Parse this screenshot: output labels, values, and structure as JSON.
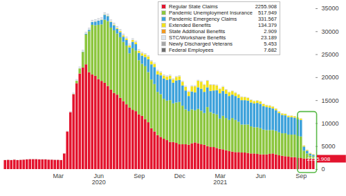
{
  "chart_data": {
    "type": "bar",
    "stacked": true,
    "grid": false,
    "legend": "top-right",
    "categories": [
      null,
      null,
      null,
      null,
      null,
      null,
      null,
      null,
      null,
      null,
      null,
      null,
      null,
      null,
      null,
      null,
      null,
      "Mar",
      null,
      null,
      null,
      null,
      null,
      null,
      null,
      null,
      null,
      null,
      null,
      null,
      "Jun\n2020",
      null,
      null,
      null,
      null,
      null,
      null,
      null,
      null,
      null,
      null,
      null,
      null,
      "Sep",
      null,
      null,
      null,
      null,
      null,
      null,
      null,
      null,
      null,
      null,
      null,
      null,
      "Dec",
      null,
      null,
      null,
      null,
      null,
      null,
      null,
      null,
      null,
      null,
      null,
      null,
      "Mar\n2021",
      null,
      null,
      null,
      null,
      null,
      null,
      null,
      null,
      null,
      null,
      null,
      null,
      "Jun",
      null,
      null,
      null,
      null,
      null,
      null,
      null,
      null,
      null,
      null,
      null,
      null,
      "Sep",
      null,
      null,
      null,
      null
    ],
    "ylim": [
      0,
      35000
    ],
    "yticks": [
      0,
      5000,
      10000,
      15000,
      20000,
      25000,
      30000,
      35000
    ],
    "series": [
      {
        "name": "Regular State Claims",
        "color": "#e3142e",
        "values": [
          1950,
          2000,
          1950,
          2050,
          1950,
          2000,
          2050,
          2100,
          2150,
          2150,
          2150,
          2100,
          2100,
          2100,
          2050,
          2050,
          2000,
          2000,
          1950,
          3400,
          8200,
          12400,
          16300,
          18700,
          20800,
          22100,
          22800,
          21100,
          20600,
          20300,
          19600,
          19200,
          18800,
          18100,
          17300,
          16600,
          16200,
          15500,
          14800,
          14100,
          13400,
          12900,
          12600,
          11900,
          11600,
          10900,
          10200,
          8900,
          8200,
          7400,
          7000,
          6600,
          6300,
          5900,
          5900,
          5700,
          5400,
          5400,
          5400,
          5300,
          5600,
          5800,
          5600,
          5400,
          5300,
          5000,
          4800,
          4800,
          4600,
          4400,
          4300,
          4100,
          3900,
          3800,
          3700,
          3700,
          3600,
          3600,
          3500,
          3400,
          3400,
          3300,
          3200,
          3200,
          3200,
          3300,
          3400,
          3200,
          3000,
          2900,
          2800,
          2700,
          2600,
          2600,
          2500,
          2400,
          2300,
          2300,
          2250,
          2255.908
        ]
      },
      {
        "name": "Pandemic Unemployment Insurance",
        "color": "#8cc63e",
        "values": [
          0,
          0,
          0,
          0,
          0,
          0,
          0,
          0,
          0,
          0,
          0,
          0,
          0,
          0,
          0,
          0,
          0,
          0,
          0,
          0,
          0,
          0,
          50,
          500,
          1100,
          3400,
          6500,
          8900,
          10800,
          11000,
          11800,
          12300,
          13700,
          14100,
          13500,
          13600,
          13300,
          13200,
          12900,
          12800,
          11800,
          13400,
          13200,
          11800,
          11300,
          11500,
          10900,
          10600,
          10300,
          9400,
          9300,
          8700,
          8600,
          9100,
          8400,
          8800,
          9200,
          8400,
          7600,
          7300,
          7400,
          7000,
          7500,
          7300,
          6900,
          8500,
          7600,
          7300,
          7300,
          6600,
          7300,
          7000,
          6800,
          7300,
          7000,
          6600,
          6100,
          6100,
          6200,
          5900,
          5700,
          5800,
          5700,
          5400,
          5300,
          5200,
          5100,
          5100,
          5000,
          4900,
          5000,
          4800,
          4900,
          4900,
          4700,
          4700,
          1700,
          1100,
          700,
          517.949
        ]
      },
      {
        "name": "Pandemic Emergency Claims",
        "color": "#3ea2db",
        "values": [
          0,
          0,
          0,
          0,
          0,
          0,
          0,
          0,
          0,
          0,
          0,
          0,
          0,
          0,
          0,
          0,
          0,
          0,
          0,
          0,
          0,
          0,
          0,
          0,
          0,
          50,
          170,
          300,
          600,
          800,
          900,
          1000,
          1100,
          1100,
          1200,
          1100,
          1000,
          1100,
          1100,
          1200,
          1300,
          1400,
          1400,
          1600,
          1800,
          2000,
          2800,
          3300,
          3700,
          3800,
          4100,
          4400,
          4500,
          4600,
          4500,
          4800,
          4800,
          4400,
          4100,
          3300,
          3900,
          3900,
          4700,
          4800,
          4600,
          4300,
          4600,
          5000,
          5300,
          5500,
          5400,
          5300,
          5200,
          5100,
          5200,
          5200,
          5300,
          5300,
          5200,
          5200,
          5200,
          5300,
          5300,
          5100,
          5000,
          4900,
          4700,
          4500,
          4200,
          4000,
          3900,
          3800,
          3800,
          3700,
          3700,
          3600,
          900,
          600,
          400,
          331.567
        ]
      },
      {
        "name": "Extended Benefits",
        "color": "#f2e21c",
        "values": [
          2,
          2,
          2,
          2,
          2,
          2,
          2,
          2,
          2,
          2,
          2,
          2,
          2,
          2,
          2,
          2,
          2,
          2,
          2,
          2,
          3,
          5,
          8,
          10,
          12,
          15,
          18,
          20,
          25,
          30,
          40,
          50,
          70,
          90,
          100,
          150,
          200,
          250,
          300,
          350,
          400,
          400,
          400,
          450,
          500,
          550,
          600,
          650,
          700,
          700,
          600,
          650,
          700,
          700,
          700,
          750,
          800,
          800,
          800,
          900,
          1100,
          1300,
          1400,
          1500,
          1500,
          1400,
          1300,
          1200,
          1000,
          950,
          900,
          850,
          800,
          750,
          700,
          700,
          700,
          650,
          600,
          550,
          500,
          500,
          500,
          450,
          400,
          400,
          400,
          350,
          300,
          300,
          300,
          300,
          300,
          300,
          300,
          280,
          200,
          170,
          150,
          134.379
        ]
      },
      {
        "name": "State Additional Benefits",
        "color": "#f39a1f",
        "values": [
          1,
          1,
          1,
          1,
          1,
          1,
          1,
          1,
          1,
          1,
          1,
          1,
          1,
          1,
          1,
          1,
          1,
          1,
          1,
          1,
          1,
          1,
          2,
          2,
          3,
          3,
          4,
          4,
          5,
          5,
          6,
          6,
          7,
          7,
          8,
          8,
          9,
          9,
          10,
          10,
          10,
          11,
          12,
          12,
          13,
          13,
          14,
          14,
          15,
          15,
          15,
          16,
          16,
          16,
          17,
          17,
          17,
          18,
          18,
          18,
          20,
          22,
          24,
          26,
          28,
          30,
          30,
          30,
          28,
          26,
          24,
          22,
          20,
          18,
          16,
          14,
          12,
          10,
          9,
          8,
          8,
          7,
          7,
          6,
          6,
          6,
          5,
          5,
          5,
          5,
          4,
          4,
          4,
          4,
          4,
          4,
          3,
          3,
          3,
          2.909
        ]
      },
      {
        "name": "STC/Workshare Benefits",
        "color": "#dbe4ee",
        "values": [
          10,
          10,
          10,
          10,
          10,
          10,
          10,
          11,
          12,
          12,
          12,
          12,
          12,
          12,
          12,
          12,
          12,
          12,
          13,
          20,
          60,
          150,
          250,
          300,
          320,
          340,
          350,
          360,
          380,
          400,
          400,
          390,
          380,
          370,
          360,
          350,
          340,
          320,
          300,
          290,
          280,
          270,
          260,
          250,
          240,
          230,
          220,
          210,
          200,
          195,
          190,
          185,
          180,
          175,
          170,
          165,
          160,
          160,
          155,
          150,
          150,
          145,
          140,
          135,
          130,
          125,
          120,
          115,
          110,
          105,
          100,
          95,
          90,
          85,
          80,
          78,
          75,
          72,
          70,
          68,
          65,
          62,
          60,
          58,
          55,
          52,
          50,
          48,
          45,
          42,
          40,
          38,
          36,
          34,
          32,
          30,
          28,
          26,
          24,
          23.189
        ]
      },
      {
        "name": "Newly Discharged Veterans",
        "color": "#a6a6a6",
        "values": [
          6,
          6,
          6,
          6,
          6,
          6,
          6,
          6,
          6,
          6,
          6,
          6,
          6,
          6,
          6,
          6,
          6,
          6,
          6,
          6,
          7,
          8,
          9,
          10,
          10,
          11,
          11,
          12,
          12,
          12,
          12,
          12,
          12,
          12,
          12,
          12,
          12,
          12,
          12,
          12,
          12,
          12,
          12,
          11,
          11,
          11,
          11,
          11,
          11,
          11,
          11,
          10,
          10,
          10,
          10,
          10,
          10,
          10,
          10,
          10,
          10,
          10,
          10,
          10,
          10,
          9,
          9,
          9,
          9,
          9,
          9,
          9,
          8,
          8,
          8,
          8,
          8,
          8,
          8,
          7,
          7,
          7,
          7,
          7,
          7,
          7,
          7,
          7,
          6,
          6,
          6,
          6,
          6,
          6,
          6,
          6,
          6,
          6,
          5.5,
          5.453
        ]
      },
      {
        "name": "Federal Employees",
        "color": "#6f6f6f",
        "values": [
          14,
          14,
          14,
          14,
          14,
          14,
          14,
          14,
          14,
          14,
          14,
          14,
          14,
          14,
          14,
          14,
          14,
          14,
          14,
          14,
          15,
          16,
          18,
          20,
          22,
          24,
          26,
          28,
          30,
          30,
          30,
          30,
          30,
          30,
          30,
          30,
          30,
          30,
          30,
          30,
          28,
          28,
          28,
          28,
          28,
          26,
          26,
          26,
          26,
          26,
          24,
          24,
          24,
          24,
          24,
          22,
          22,
          22,
          22,
          22,
          20,
          20,
          20,
          20,
          20,
          18,
          18,
          18,
          18,
          18,
          16,
          16,
          16,
          16,
          16,
          14,
          14,
          14,
          14,
          14,
          12,
          12,
          12,
          12,
          12,
          11,
          11,
          11,
          11,
          11,
          10,
          10,
          10,
          10,
          9,
          9,
          8,
          8,
          8,
          7.682
        ]
      }
    ]
  }
}
